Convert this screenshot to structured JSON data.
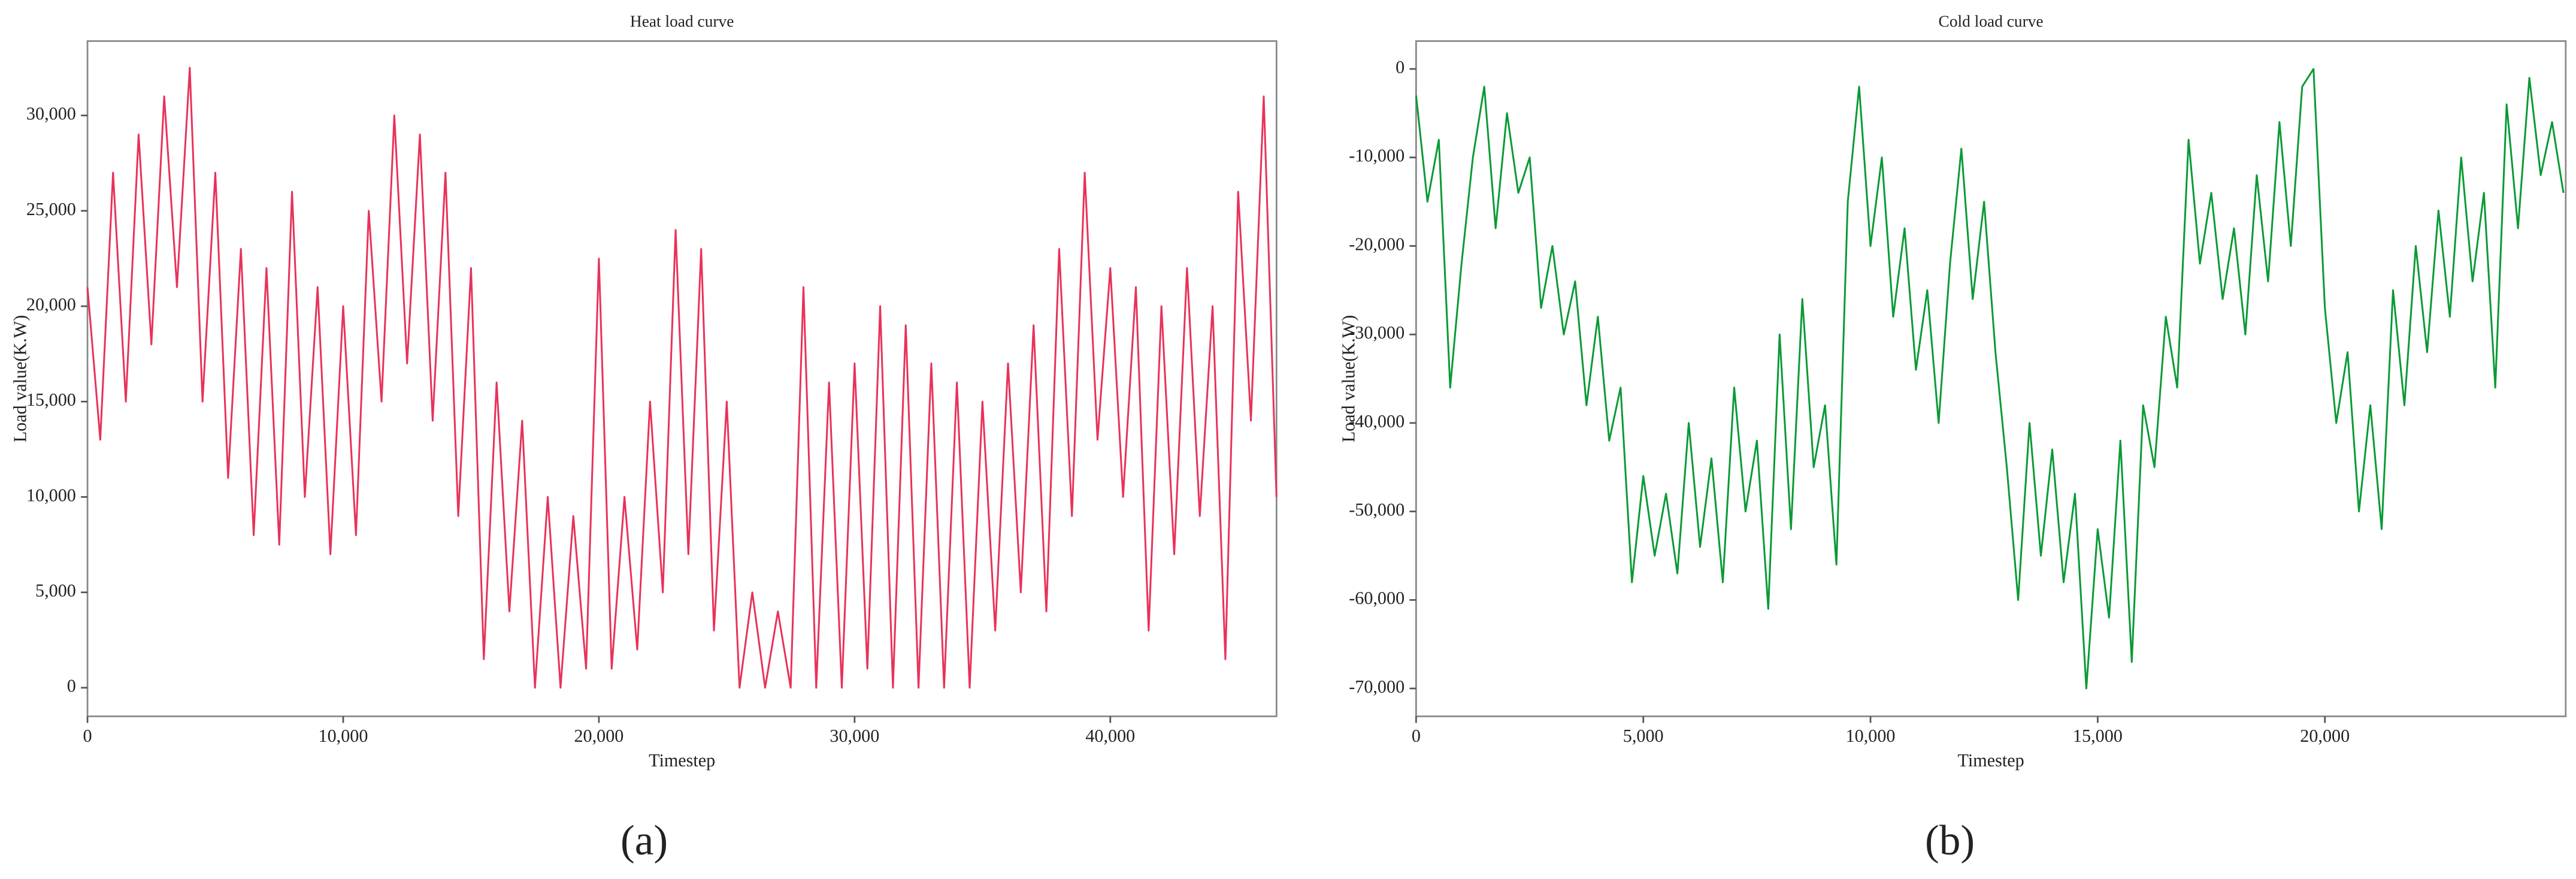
{
  "chart_data": [
    {
      "type": "line",
      "title": "Heat load curve",
      "x_label": "Timestep",
      "y_label": "Load value(K.W)",
      "caption": "(a)",
      "color": "#e8325a",
      "xlim": [
        0,
        46500
      ],
      "ylim": [
        -1500,
        33900
      ],
      "xticks": [
        0,
        {
          "value": 10000,
          "label": "10,000"
        },
        {
          "value": 20000,
          "label": "20,000"
        },
        {
          "value": 30000,
          "label": "30,000"
        },
        {
          "value": 40000,
          "label": "40,000"
        }
      ],
      "yticks": [
        0,
        {
          "value": 5000,
          "label": "5,000"
        },
        {
          "value": 10000,
          "label": "10,000"
        },
        {
          "value": 15000,
          "label": "15,000"
        },
        {
          "value": 20000,
          "label": "20,000"
        },
        {
          "value": 25000,
          "label": "25,000"
        },
        {
          "value": 30000,
          "label": "30,000"
        }
      ],
      "x": [
        0,
        500,
        1000,
        1500,
        2000,
        2500,
        3000,
        3500,
        4000,
        4500,
        5000,
        5500,
        6000,
        6500,
        7000,
        7500,
        8000,
        8500,
        9000,
        9500,
        10000,
        10500,
        11000,
        11500,
        12000,
        12500,
        13000,
        13500,
        14000,
        14500,
        15000,
        15500,
        16000,
        16500,
        17000,
        17500,
        18000,
        18500,
        19000,
        19500,
        20000,
        20500,
        21000,
        21500,
        22000,
        22500,
        23000,
        23500,
        24000,
        24500,
        25000,
        25500,
        26000,
        26500,
        27000,
        27500,
        28000,
        28500,
        29000,
        29500,
        30000,
        30500,
        31000,
        31500,
        32000,
        32500,
        33000,
        33500,
        34000,
        34500,
        35000,
        35500,
        36000,
        36500,
        37000,
        37500,
        38000,
        38500,
        39000,
        39500,
        40000,
        40500,
        41000,
        41500,
        42000,
        42500,
        43000,
        43500,
        44000,
        44500,
        45000,
        45500,
        46000,
        46500
      ],
      "values": [
        21000,
        13000,
        27000,
        15000,
        29000,
        18000,
        31000,
        21000,
        32500,
        15000,
        27000,
        11000,
        23000,
        8000,
        22000,
        7500,
        26000,
        10000,
        21000,
        7000,
        20000,
        8000,
        25000,
        15000,
        30000,
        17000,
        29000,
        14000,
        27000,
        9000,
        22000,
        1500,
        16000,
        4000,
        14000,
        0,
        10000,
        0,
        9000,
        1000,
        22500,
        1000,
        10000,
        2000,
        15000,
        5000,
        24000,
        7000,
        23000,
        3000,
        15000,
        0,
        5000,
        0,
        4000,
        0,
        21000,
        0,
        16000,
        0,
        17000,
        1000,
        20000,
        0,
        19000,
        0,
        17000,
        0,
        16000,
        0,
        15000,
        3000,
        17000,
        5000,
        19000,
        4000,
        23000,
        9000,
        27000,
        13000,
        22000,
        10000,
        21000,
        3000,
        20000,
        7000,
        22000,
        9000,
        20000,
        1500,
        26000,
        14000,
        31000,
        10000
      ]
    },
    {
      "type": "line",
      "title": "Cold load curve",
      "x_label": "Timestep",
      "y_label": "Load value(K.W)",
      "caption": "(b)",
      "color": "#0a9a35",
      "xlim": [
        0,
        25300
      ],
      "ylim": [
        -73150,
        3150
      ],
      "xticks": [
        0,
        {
          "value": 5000,
          "label": "5,000"
        },
        {
          "value": 10000,
          "label": "10,000"
        },
        {
          "value": 15000,
          "label": "15,000"
        },
        {
          "value": 20000,
          "label": "20,000"
        }
      ],
      "yticks": [
        0,
        {
          "value": -10000,
          "label": "-10,000"
        },
        {
          "value": -20000,
          "label": "-20,000"
        },
        {
          "value": -30000,
          "label": "-30,000"
        },
        {
          "value": -40000,
          "label": "-40,000"
        },
        {
          "value": -50000,
          "label": "-50,000"
        },
        {
          "value": -60000,
          "label": "-60,000"
        },
        {
          "value": -70000,
          "label": "-70,000"
        }
      ],
      "x": [
        0,
        250,
        500,
        750,
        1000,
        1250,
        1500,
        1750,
        2000,
        2250,
        2500,
        2750,
        3000,
        3250,
        3500,
        3750,
        4000,
        4250,
        4500,
        4750,
        5000,
        5250,
        5500,
        5750,
        6000,
        6250,
        6500,
        6750,
        7000,
        7250,
        7500,
        7750,
        8000,
        8250,
        8500,
        8750,
        9000,
        9250,
        9500,
        9750,
        10000,
        10250,
        10500,
        10750,
        11000,
        11250,
        11500,
        11750,
        12000,
        12250,
        12500,
        12750,
        13000,
        13250,
        13500,
        13750,
        14000,
        14250,
        14500,
        14750,
        15000,
        15250,
        15500,
        15750,
        16000,
        16250,
        16500,
        16750,
        17000,
        17250,
        17500,
        17750,
        18000,
        18250,
        18500,
        18750,
        19000,
        19250,
        19500,
        19750,
        20000,
        20250,
        20500,
        20750,
        21000,
        21250,
        21500,
        21750,
        22000,
        22250,
        22500,
        22750,
        23000,
        23250,
        23500,
        23750,
        24000,
        24250,
        24500,
        24750,
        25000,
        25250
      ],
      "values": [
        -3000,
        -15000,
        -8000,
        -36000,
        -22000,
        -10000,
        -2000,
        -18000,
        -5000,
        -14000,
        -10000,
        -27000,
        -20000,
        -30000,
        -24000,
        -38000,
        -28000,
        -42000,
        -36000,
        -58000,
        -46000,
        -55000,
        -48000,
        -57000,
        -40000,
        -54000,
        -44000,
        -58000,
        -36000,
        -50000,
        -42000,
        -61000,
        -30000,
        -52000,
        -26000,
        -45000,
        -38000,
        -56000,
        -15000,
        -2000,
        -20000,
        -10000,
        -28000,
        -18000,
        -34000,
        -25000,
        -40000,
        -22000,
        -9000,
        -26000,
        -15000,
        -32000,
        -45000,
        -60000,
        -40000,
        -55000,
        -43000,
        -58000,
        -48000,
        -70000,
        -52000,
        -62000,
        -42000,
        -67000,
        -38000,
        -45000,
        -28000,
        -36000,
        -8000,
        -22000,
        -14000,
        -26000,
        -18000,
        -30000,
        -12000,
        -24000,
        -6000,
        -20000,
        -2000,
        0,
        -27000,
        -40000,
        -32000,
        -50000,
        -38000,
        -52000,
        -25000,
        -38000,
        -20000,
        -32000,
        -16000,
        -28000,
        -10000,
        -24000,
        -14000,
        -36000,
        -4000,
        -18000,
        -1000,
        -12000,
        -6000,
        -14000
      ]
    }
  ]
}
